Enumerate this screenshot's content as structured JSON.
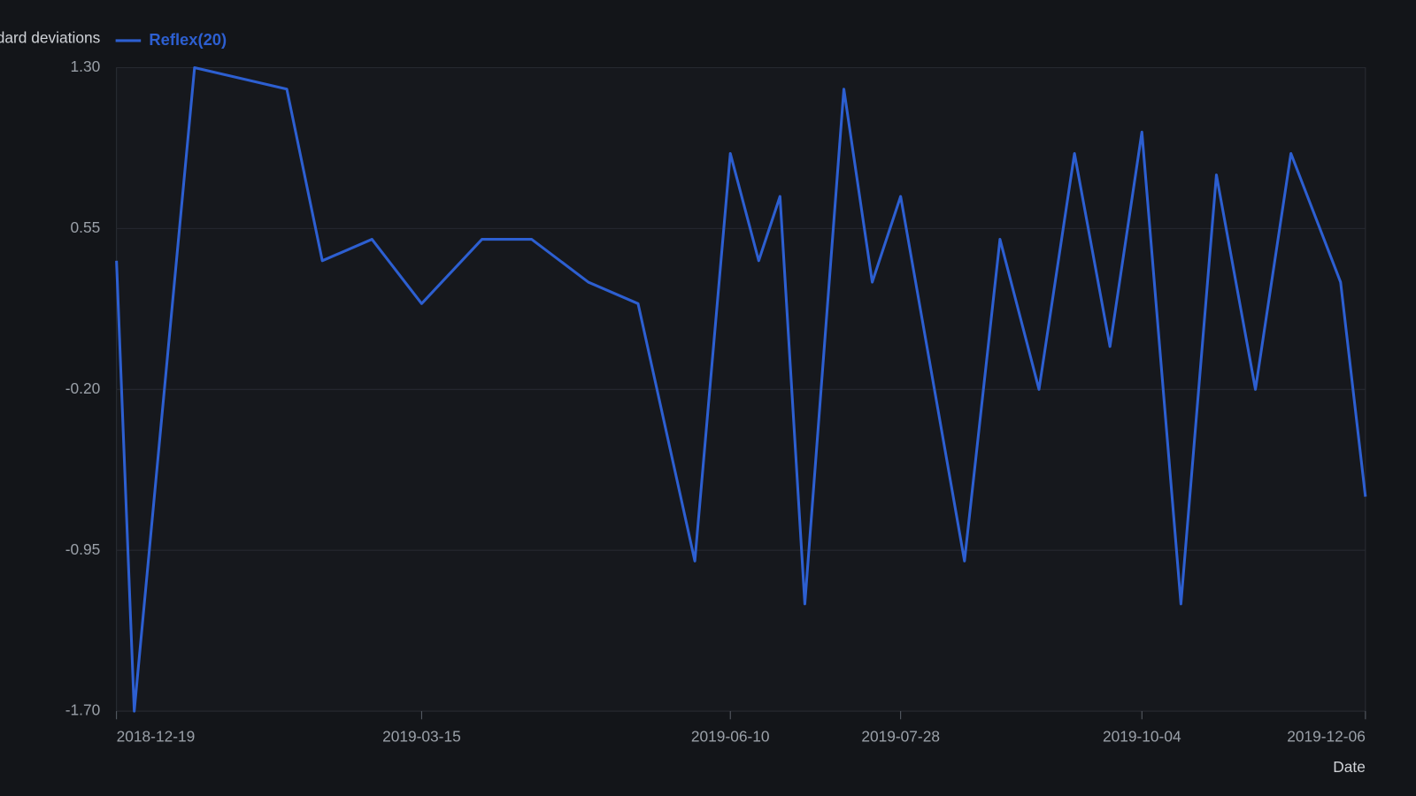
{
  "chart_data": {
    "type": "line",
    "ylabel": "Standard deviations",
    "xlabel": "Date",
    "x": [
      "2018-12-19",
      "2018-12-24",
      "2019-01-10",
      "2019-02-05",
      "2019-02-15",
      "2019-03-01",
      "2019-03-15",
      "2019-04-01",
      "2019-04-15",
      "2019-05-01",
      "2019-05-15",
      "2019-05-31",
      "2019-06-10",
      "2019-06-18",
      "2019-06-24",
      "2019-07-01",
      "2019-07-12",
      "2019-07-20",
      "2019-07-28",
      "2019-08-15",
      "2019-08-25",
      "2019-09-05",
      "2019-09-15",
      "2019-09-25",
      "2019-10-04",
      "2019-10-15",
      "2019-10-25",
      "2019-11-05",
      "2019-11-15",
      "2019-11-29",
      "2019-12-06"
    ],
    "series": [
      {
        "name": "Reflex(20)",
        "color": "#2d5fd1",
        "values": [
          0.4,
          -1.7,
          1.3,
          1.2,
          0.4,
          0.5,
          0.2,
          0.5,
          0.5,
          0.3,
          0.2,
          -1.0,
          0.9,
          0.4,
          0.7,
          -1.2,
          1.2,
          0.3,
          0.7,
          -1.0,
          0.5,
          -0.2,
          0.9,
          0.0,
          1.0,
          -1.2,
          0.8,
          -0.2,
          0.9,
          0.3,
          -0.7
        ]
      }
    ],
    "xlim": [
      "2018-12-19",
      "2019-12-06"
    ],
    "xticks": [
      "2018-12-19",
      "2019-03-15",
      "2019-06-10",
      "2019-07-28",
      "2019-10-04",
      "2019-12-06"
    ],
    "ylim": [
      -1.7,
      1.3
    ],
    "yticks": [
      {
        "value": 1.3,
        "label": "1.30"
      },
      0.55,
      {
        "value": -0.2,
        "label": "-0.20"
      },
      -0.95,
      {
        "value": -1.7,
        "label": "-1.70"
      }
    ],
    "grid": true
  }
}
